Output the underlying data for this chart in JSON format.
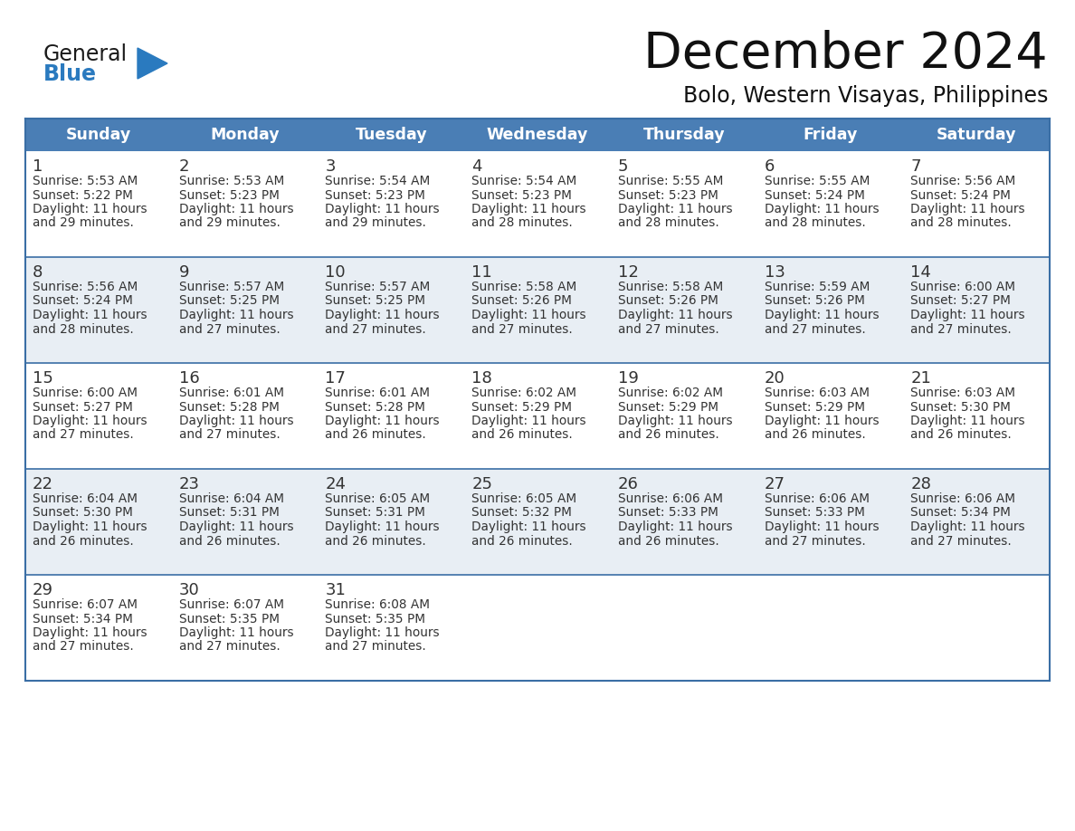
{
  "title": "December 2024",
  "subtitle": "Bolo, Western Visayas, Philippines",
  "days_of_week": [
    "Sunday",
    "Monday",
    "Tuesday",
    "Wednesday",
    "Thursday",
    "Friday",
    "Saturday"
  ],
  "header_color": "#4a7eb5",
  "header_text_color": "#ffffff",
  "cell_bg_white": "#ffffff",
  "cell_bg_grey": "#e8eef4",
  "border_color": "#3a6ea5",
  "text_color": "#333333",
  "title_color": "#111111",
  "subtitle_color": "#111111",
  "day_number_color": "#333333",
  "logo_general_color": "#1a1a1a",
  "logo_blue_color": "#2a7abf",
  "calendar": [
    [
      {
        "day": 1,
        "sunrise": "5:53 AM",
        "sunset": "5:22 PM",
        "daylight_min": "29 minutes."
      },
      {
        "day": 2,
        "sunrise": "5:53 AM",
        "sunset": "5:23 PM",
        "daylight_min": "29 minutes."
      },
      {
        "day": 3,
        "sunrise": "5:54 AM",
        "sunset": "5:23 PM",
        "daylight_min": "29 minutes."
      },
      {
        "day": 4,
        "sunrise": "5:54 AM",
        "sunset": "5:23 PM",
        "daylight_min": "28 minutes."
      },
      {
        "day": 5,
        "sunrise": "5:55 AM",
        "sunset": "5:23 PM",
        "daylight_min": "28 minutes."
      },
      {
        "day": 6,
        "sunrise": "5:55 AM",
        "sunset": "5:24 PM",
        "daylight_min": "28 minutes."
      },
      {
        "day": 7,
        "sunrise": "5:56 AM",
        "sunset": "5:24 PM",
        "daylight_min": "28 minutes."
      }
    ],
    [
      {
        "day": 8,
        "sunrise": "5:56 AM",
        "sunset": "5:24 PM",
        "daylight_min": "28 minutes."
      },
      {
        "day": 9,
        "sunrise": "5:57 AM",
        "sunset": "5:25 PM",
        "daylight_min": "27 minutes."
      },
      {
        "day": 10,
        "sunrise": "5:57 AM",
        "sunset": "5:25 PM",
        "daylight_min": "27 minutes."
      },
      {
        "day": 11,
        "sunrise": "5:58 AM",
        "sunset": "5:26 PM",
        "daylight_min": "27 minutes."
      },
      {
        "day": 12,
        "sunrise": "5:58 AM",
        "sunset": "5:26 PM",
        "daylight_min": "27 minutes."
      },
      {
        "day": 13,
        "sunrise": "5:59 AM",
        "sunset": "5:26 PM",
        "daylight_min": "27 minutes."
      },
      {
        "day": 14,
        "sunrise": "6:00 AM",
        "sunset": "5:27 PM",
        "daylight_min": "27 minutes."
      }
    ],
    [
      {
        "day": 15,
        "sunrise": "6:00 AM",
        "sunset": "5:27 PM",
        "daylight_min": "27 minutes."
      },
      {
        "day": 16,
        "sunrise": "6:01 AM",
        "sunset": "5:28 PM",
        "daylight_min": "27 minutes."
      },
      {
        "day": 17,
        "sunrise": "6:01 AM",
        "sunset": "5:28 PM",
        "daylight_min": "26 minutes."
      },
      {
        "day": 18,
        "sunrise": "6:02 AM",
        "sunset": "5:29 PM",
        "daylight_min": "26 minutes."
      },
      {
        "day": 19,
        "sunrise": "6:02 AM",
        "sunset": "5:29 PM",
        "daylight_min": "26 minutes."
      },
      {
        "day": 20,
        "sunrise": "6:03 AM",
        "sunset": "5:29 PM",
        "daylight_min": "26 minutes."
      },
      {
        "day": 21,
        "sunrise": "6:03 AM",
        "sunset": "5:30 PM",
        "daylight_min": "26 minutes."
      }
    ],
    [
      {
        "day": 22,
        "sunrise": "6:04 AM",
        "sunset": "5:30 PM",
        "daylight_min": "26 minutes."
      },
      {
        "day": 23,
        "sunrise": "6:04 AM",
        "sunset": "5:31 PM",
        "daylight_min": "26 minutes."
      },
      {
        "day": 24,
        "sunrise": "6:05 AM",
        "sunset": "5:31 PM",
        "daylight_min": "26 minutes."
      },
      {
        "day": 25,
        "sunrise": "6:05 AM",
        "sunset": "5:32 PM",
        "daylight_min": "26 minutes."
      },
      {
        "day": 26,
        "sunrise": "6:06 AM",
        "sunset": "5:33 PM",
        "daylight_min": "26 minutes."
      },
      {
        "day": 27,
        "sunrise": "6:06 AM",
        "sunset": "5:33 PM",
        "daylight_min": "27 minutes."
      },
      {
        "day": 28,
        "sunrise": "6:06 AM",
        "sunset": "5:34 PM",
        "daylight_min": "27 minutes."
      }
    ],
    [
      {
        "day": 29,
        "sunrise": "6:07 AM",
        "sunset": "5:34 PM",
        "daylight_min": "27 minutes."
      },
      {
        "day": 30,
        "sunrise": "6:07 AM",
        "sunset": "5:35 PM",
        "daylight_min": "27 minutes."
      },
      {
        "day": 31,
        "sunrise": "6:08 AM",
        "sunset": "5:35 PM",
        "daylight_min": "27 minutes."
      },
      null,
      null,
      null,
      null
    ]
  ]
}
